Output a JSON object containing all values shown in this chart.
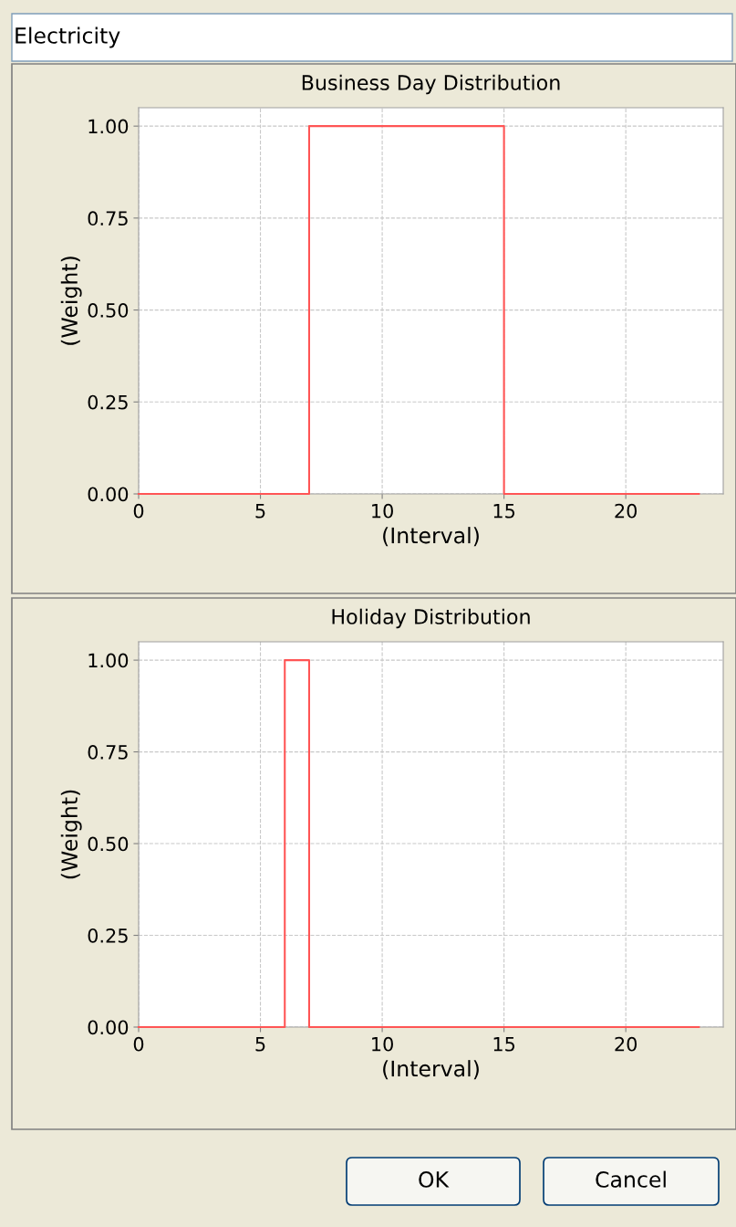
{
  "chart_data": [
    {
      "type": "other",
      "annotations": [
        "Electricity",
        "OK",
        "Cancel"
      ]
    },
    {
      "type": "step",
      "title": "Business Day Distribution",
      "xlabel": "(Interval)",
      "ylabel": "(Weight)",
      "x": [
        0,
        7,
        15,
        23
      ],
      "series": [
        {
          "color": "#ff5555",
          "values": [
            0,
            1,
            0,
            0
          ]
        }
      ],
      "xlim": [
        0,
        24
      ],
      "ylim": [
        0,
        1.05
      ],
      "xticks": [
        0,
        5,
        10,
        15,
        20
      ],
      "yticks": [
        {
          "value": 0,
          "label": "0.00"
        },
        {
          "value": 0.25,
          "label": "0.25"
        },
        {
          "value": 0.5,
          "label": "0.50"
        },
        {
          "value": 0.75,
          "label": "0.75"
        },
        {
          "value": 1,
          "label": "1.00"
        }
      ],
      "grid": true,
      "line_style": "solid"
    },
    {
      "type": "step",
      "title": "Holiday Distribution",
      "xlabel": "(Interval)",
      "ylabel": "(Weight)",
      "x": [
        0,
        6,
        7,
        23
      ],
      "series": [
        {
          "color": "#ff5555",
          "values": [
            0,
            1,
            0,
            0
          ]
        }
      ],
      "xlim": [
        0,
        24
      ],
      "ylim": [
        0,
        1.05
      ],
      "xticks": [
        0,
        5,
        10,
        15,
        20
      ],
      "yticks": [
        {
          "value": 0,
          "label": "0.00"
        },
        {
          "value": 0.25,
          "label": "0.25"
        },
        {
          "value": 0.5,
          "label": "0.50"
        },
        {
          "value": 0.75,
          "label": "0.75"
        },
        {
          "value": 1,
          "label": "1.00"
        }
      ],
      "grid": true,
      "line_style": "solid"
    }
  ]
}
